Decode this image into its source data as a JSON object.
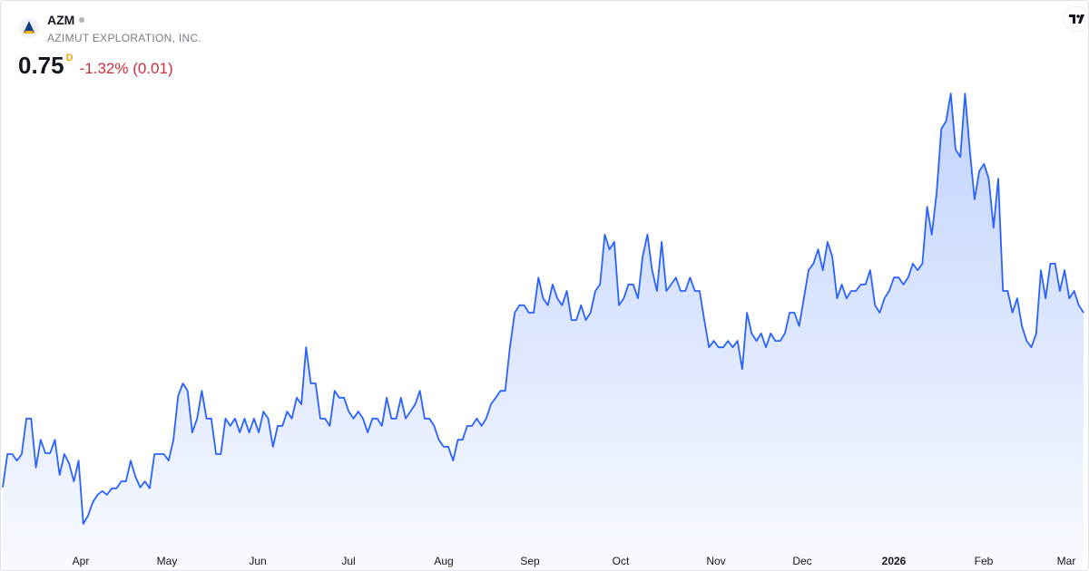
{
  "chart_data": {
    "type": "area",
    "symbol": "AZM",
    "name": "AZIMUT EXPLORATION, INC.",
    "price": 0.75,
    "price_suffix": "D",
    "change_label": "-1.32% (0.01)",
    "color": "#2962ff",
    "ylim": [
      0.25,
      1.25
    ],
    "x_labels": [
      "Apr",
      "May",
      "Jun",
      "Jul",
      "Aug",
      "Sep",
      "Oct",
      "Nov",
      "Dec",
      "2026",
      "Feb",
      "Mar"
    ],
    "values": [
      0.374,
      0.446,
      0.446,
      0.432,
      0.446,
      0.523,
      0.523,
      0.417,
      0.477,
      0.448,
      0.448,
      0.477,
      0.401,
      0.446,
      0.426,
      0.387,
      0.432,
      0.295,
      0.313,
      0.342,
      0.358,
      0.366,
      0.358,
      0.372,
      0.372,
      0.387,
      0.387,
      0.432,
      0.397,
      0.374,
      0.387,
      0.372,
      0.446,
      0.446,
      0.446,
      0.432,
      0.477,
      0.572,
      0.599,
      0.583,
      0.493,
      0.523,
      0.583,
      0.523,
      0.523,
      0.446,
      0.446,
      0.523,
      0.507,
      0.523,
      0.493,
      0.523,
      0.493,
      0.523,
      0.493,
      0.538,
      0.523,
      0.462,
      0.507,
      0.507,
      0.538,
      0.523,
      0.568,
      0.554,
      0.677,
      0.599,
      0.599,
      0.523,
      0.523,
      0.507,
      0.583,
      0.568,
      0.568,
      0.538,
      0.523,
      0.538,
      0.523,
      0.493,
      0.523,
      0.523,
      0.507,
      0.568,
      0.523,
      0.523,
      0.568,
      0.523,
      0.538,
      0.554,
      0.583,
      0.523,
      0.523,
      0.507,
      0.477,
      0.462,
      0.462,
      0.432,
      0.477,
      0.477,
      0.507,
      0.507,
      0.523,
      0.507,
      0.523,
      0.554,
      0.568,
      0.583,
      0.583,
      0.677,
      0.752,
      0.768,
      0.768,
      0.752,
      0.752,
      0.828,
      0.783,
      0.768,
      0.813,
      0.783,
      0.768,
      0.799,
      0.736,
      0.736,
      0.768,
      0.736,
      0.752,
      0.799,
      0.813,
      0.921,
      0.889,
      0.905,
      0.768,
      0.783,
      0.813,
      0.813,
      0.783,
      0.874,
      0.921,
      0.844,
      0.799,
      0.905,
      0.799,
      0.813,
      0.828,
      0.799,
      0.799,
      0.828,
      0.799,
      0.799,
      0.736,
      0.677,
      0.691,
      0.677,
      0.677,
      0.691,
      0.677,
      0.691,
      0.63,
      0.752,
      0.707,
      0.691,
      0.707,
      0.677,
      0.707,
      0.691,
      0.691,
      0.707,
      0.752,
      0.752,
      0.723,
      0.783,
      0.844,
      0.858,
      0.889,
      0.844,
      0.905,
      0.874,
      0.783,
      0.813,
      0.783,
      0.799,
      0.799,
      0.813,
      0.813,
      0.844,
      0.768,
      0.752,
      0.783,
      0.799,
      0.828,
      0.828,
      0.813,
      0.828,
      0.858,
      0.844,
      0.858,
      0.981,
      0.921,
      1.011,
      1.15,
      1.166,
      1.226,
      1.105,
      1.089,
      1.226,
      1.105,
      0.997,
      1.058,
      1.074,
      1.042,
      0.936,
      1.042,
      0.799,
      0.799,
      0.752,
      0.783,
      0.723,
      0.691,
      0.677,
      0.707,
      0.844,
      0.783,
      0.858,
      0.858,
      0.799,
      0.844,
      0.783,
      0.799,
      0.768,
      0.752
    ]
  }
}
